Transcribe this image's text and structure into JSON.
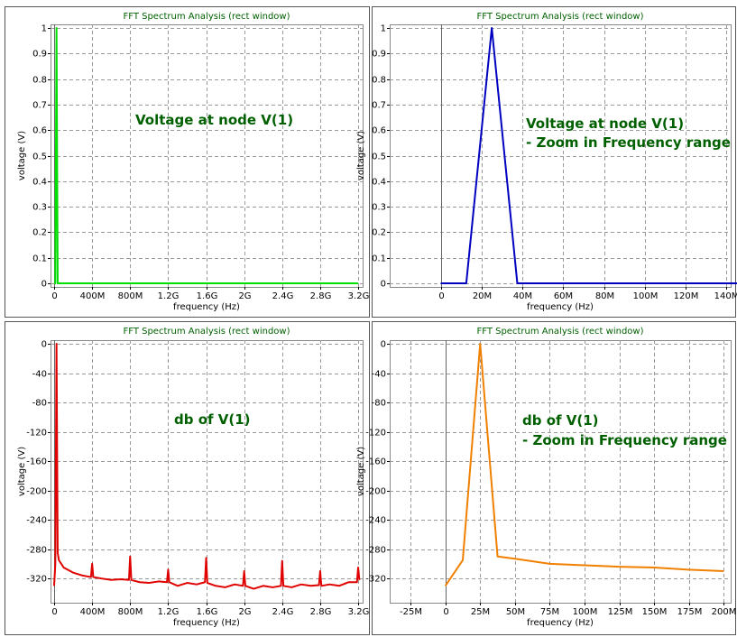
{
  "chart_data": [
    {
      "type": "line",
      "title": "FFT Spectrum Analysis (rect window)",
      "xlabel": "frequency (Hz)",
      "ylabel": "voltage (V)",
      "annotation": [
        "Voltage at node V(1)"
      ],
      "x": [
        0,
        12500000,
        25000000,
        37500000,
        3200000000
      ],
      "values": [
        0,
        0,
        1,
        0,
        0
      ],
      "color": "#00e000",
      "xlim": [
        -38000000,
        3247000000
      ],
      "xticks": [
        0,
        {
          "value": 400000000,
          "label": "400M"
        },
        {
          "value": 800000000,
          "label": "800M"
        },
        {
          "value": 1200000000,
          "label": "1.2G"
        },
        {
          "value": 1600000000,
          "label": "1.6G"
        },
        {
          "value": 2000000000,
          "label": "2G"
        },
        {
          "value": 2400000000,
          "label": "2.4G"
        },
        {
          "value": 2800000000,
          "label": "2.8G"
        },
        {
          "value": 3200000000,
          "label": "3.2G"
        }
      ],
      "ylim": [
        -0.014,
        1.014
      ],
      "yticks": [
        0,
        0.1,
        0.2,
        0.3,
        0.4,
        0.5,
        0.6,
        0.7,
        0.8,
        0.9,
        1
      ],
      "grid": true
    },
    {
      "type": "line",
      "title": "FFT Spectrum Analysis (rect window)",
      "xlabel": "frequency (Hz)",
      "ylabel": "voltage (V)",
      "annotation": [
        "Voltage at node V(1)",
        "- Zoom in Frequency range"
      ],
      "x": [
        0,
        12500000,
        25000000,
        37500000,
        150000000
      ],
      "values": [
        0,
        0,
        1,
        0,
        0
      ],
      "color": "#0000c0",
      "xlim": [
        -25000000,
        142000000
      ],
      "xticks": [
        0,
        {
          "value": 20000000,
          "label": "20M"
        },
        {
          "value": 40000000,
          "label": "40M"
        },
        {
          "value": 60000000,
          "label": "60M"
        },
        {
          "value": 80000000,
          "label": "80M"
        },
        {
          "value": 100000000,
          "label": "100M"
        },
        {
          "value": 120000000,
          "label": "120M"
        },
        {
          "value": 140000000,
          "label": "140M"
        }
      ],
      "ylim": [
        -0.014,
        1.014
      ],
      "yticks": [
        0,
        0.1,
        0.2,
        0.3,
        0.4,
        0.5,
        0.6,
        0.7,
        0.8,
        0.9,
        1
      ],
      "grid": true
    },
    {
      "type": "line",
      "title": "FFT Spectrum Analysis (rect window)",
      "xlabel": "frequency (Hz)",
      "ylabel": "voltage (V)",
      "annotation": [
        "db of  V(1)"
      ],
      "x": [
        0,
        12500000,
        25000000,
        37500000,
        50000000,
        100000000,
        200000000,
        300000000,
        387500000,
        400000000,
        412500000,
        500000000,
        600000000,
        700000000,
        787500000,
        800000000,
        812500000,
        900000000,
        1000000000,
        1100000000,
        1187500000,
        1200000000,
        1212500000,
        1300000000,
        1400000000,
        1500000000,
        1587500000,
        1600000000,
        1612500000,
        1700000000,
        1800000000,
        1900000000,
        1987500000,
        2000000000,
        2012500000,
        2100000000,
        2200000000,
        2300000000,
        2387500000,
        2400000000,
        2412500000,
        2500000000,
        2600000000,
        2700000000,
        2787500000,
        2800000000,
        2812500000,
        2900000000,
        3000000000,
        3100000000,
        3187500000,
        3200000000,
        3212500000
      ],
      "values": [
        -330,
        -300,
        0,
        -285,
        -295,
        -305,
        -312,
        -316,
        -318,
        -300,
        -318,
        -320,
        -322,
        -321,
        -322,
        -290,
        -322,
        -325,
        -326,
        -324,
        -325,
        -308,
        -325,
        -330,
        -326,
        -328,
        -325,
        -292,
        -326,
        -330,
        -332,
        -328,
        -330,
        -310,
        -330,
        -334,
        -330,
        -332,
        -330,
        -296,
        -330,
        -332,
        -328,
        -330,
        -329,
        -310,
        -330,
        -328,
        -330,
        -325,
        -325,
        -305,
        -322
      ],
      "color": "#e00000",
      "xlim": [
        -38000000,
        3247000000
      ],
      "xticks": [
        0,
        {
          "value": 400000000,
          "label": "400M"
        },
        {
          "value": 800000000,
          "label": "800M"
        },
        {
          "value": 1200000000,
          "label": "1.2G"
        },
        {
          "value": 1600000000,
          "label": "1.6G"
        },
        {
          "value": 2000000000,
          "label": "2G"
        },
        {
          "value": 2400000000,
          "label": "2.4G"
        },
        {
          "value": 2800000000,
          "label": "2.8G"
        },
        {
          "value": 3200000000,
          "label": "3.2G"
        }
      ],
      "ylim": [
        -353,
        5
      ],
      "yticks": [
        -320,
        -280,
        -240,
        -200,
        -160,
        -120,
        -80,
        -40,
        0
      ],
      "grid": true
    },
    {
      "type": "line",
      "title": "FFT Spectrum Analysis (rect window)",
      "xlabel": "frequency (Hz)",
      "ylabel": "voltage (V)",
      "annotation": [
        "db of V(1)",
        "- Zoom in Frequency range"
      ],
      "x": [
        0,
        12500000,
        25000000,
        37500000,
        50000000,
        75000000,
        100000000,
        125000000,
        150000000,
        175000000,
        200000000
      ],
      "values": [
        -330,
        -295,
        0,
        -290,
        -293,
        -300,
        -302,
        -304,
        -305,
        -308,
        -310
      ],
      "color": "#f08000",
      "xlim": [
        -40000000,
        205000000
      ],
      "xticks": [
        {
          "value": -25000000,
          "label": "-25M"
        },
        0,
        {
          "value": 25000000,
          "label": "25M"
        },
        {
          "value": 50000000,
          "label": "50M"
        },
        {
          "value": 75000000,
          "label": "75M"
        },
        {
          "value": 100000000,
          "label": "100M"
        },
        {
          "value": 125000000,
          "label": "125M"
        },
        {
          "value": 150000000,
          "label": "150M"
        },
        {
          "value": 175000000,
          "label": "175M"
        },
        {
          "value": 200000000,
          "label": "200M"
        }
      ],
      "ylim": [
        -353,
        5
      ],
      "yticks": [
        -320,
        -280,
        -240,
        -200,
        -160,
        -120,
        -80,
        -40,
        0
      ],
      "grid": true
    }
  ]
}
